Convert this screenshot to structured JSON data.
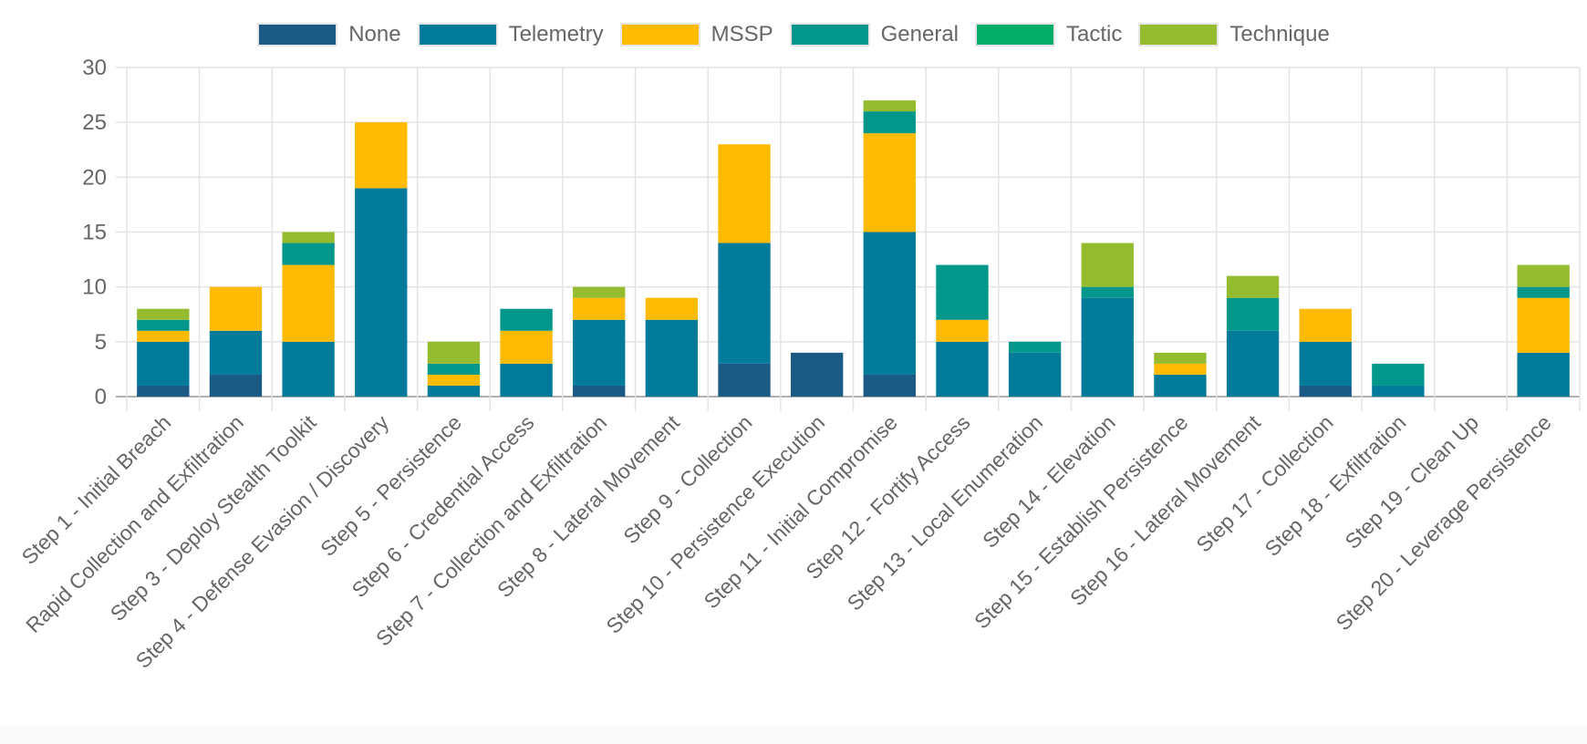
{
  "chart_data": {
    "type": "bar",
    "stacked": true,
    "title": "",
    "xlabel": "",
    "ylabel": "",
    "ylim": [
      0,
      30
    ],
    "yticks": [
      0,
      5,
      10,
      15,
      20,
      25,
      30
    ],
    "grid": true,
    "legend_position": "top",
    "categories": [
      "Step 1 - Initial Breach",
      "Rapid Collection and Exfiltration",
      "Step 3 - Deploy Stealth Toolkit",
      "Step 4 - Defense Evasion / Discovery",
      "Step 5 - Persistence",
      "Step 6 - Credential Access",
      "Step 7 - Collection and Exfiltration",
      "Step 8 - Lateral Movement",
      "Step 9 - Collection",
      "Step 10 - Persistence Execution",
      "Step 11 - Initial Compromise",
      "Step 12 - Fortify Access",
      "Step 13 - Local Enumeration",
      "Step 14 - Elevation",
      "Step 15 - Establish Persistence",
      "Step 16 - Lateral Movement",
      "Step 17 - Collection",
      "Step 18 - Exfiltration",
      "Step 19 - Clean Up",
      "Step 20 - Leverage Persistence"
    ],
    "series": [
      {
        "name": "None",
        "color": "#1b5a85",
        "values": [
          1,
          2,
          0,
          0,
          0,
          0,
          1,
          0,
          3,
          4,
          2,
          0,
          0,
          0,
          0,
          0,
          1,
          0,
          0,
          0
        ]
      },
      {
        "name": "Telemetry",
        "color": "#027b9a",
        "values": [
          4,
          4,
          5,
          19,
          1,
          3,
          6,
          7,
          11,
          0,
          13,
          5,
          4,
          9,
          2,
          6,
          4,
          1,
          0,
          4
        ]
      },
      {
        "name": "MSSP",
        "color": "#ffba04",
        "values": [
          1,
          4,
          7,
          6,
          1,
          3,
          2,
          2,
          9,
          0,
          9,
          2,
          0,
          0,
          1,
          0,
          3,
          0,
          0,
          5
        ]
      },
      {
        "name": "General",
        "color": "#03968a",
        "values": [
          1,
          0,
          2,
          0,
          1,
          2,
          0,
          0,
          0,
          0,
          2,
          5,
          1,
          1,
          0,
          3,
          0,
          2,
          0,
          1
        ]
      },
      {
        "name": "Tactic",
        "color": "#04ac69",
        "values": [
          0,
          0,
          0,
          0,
          0,
          0,
          0,
          0,
          0,
          0,
          0,
          0,
          0,
          0,
          0,
          0,
          0,
          0,
          0,
          0
        ]
      },
      {
        "name": "Technique",
        "color": "#95bc2e",
        "values": [
          1,
          0,
          1,
          0,
          2,
          0,
          1,
          0,
          0,
          0,
          1,
          0,
          0,
          4,
          1,
          2,
          0,
          0,
          0,
          2
        ]
      }
    ]
  }
}
